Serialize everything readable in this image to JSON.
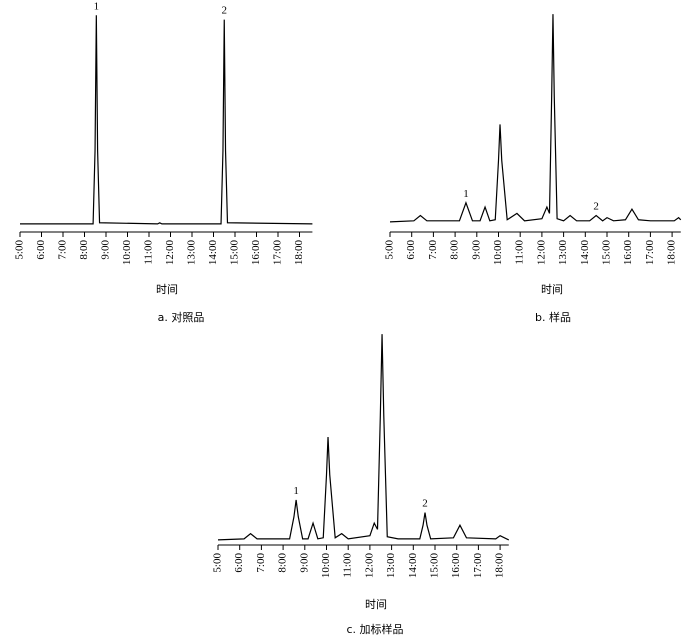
{
  "chart_data": [
    {
      "type": "line",
      "caption": "a. 对照品",
      "xlabel": "时间",
      "color": "#000000",
      "xlim": [
        5,
        18.6
      ],
      "ylim": [
        0,
        100
      ],
      "xticks": [
        {
          "value": 5,
          "label": "5:00"
        },
        {
          "value": 6,
          "label": "6:00"
        },
        {
          "value": 7,
          "label": "7:00"
        },
        {
          "value": 8,
          "label": "8:00"
        },
        {
          "value": 9,
          "label": "9:00"
        },
        {
          "value": 10,
          "label": "10:00"
        },
        {
          "value": 11,
          "label": "11:00"
        },
        {
          "value": 12,
          "label": "12:00"
        },
        {
          "value": 13,
          "label": "13:00"
        },
        {
          "value": 14,
          "label": "14:00"
        },
        {
          "value": 15,
          "label": "15:00"
        },
        {
          "value": 16,
          "label": "16:00"
        },
        {
          "value": 17,
          "label": "17:00"
        },
        {
          "value": 18,
          "label": "18:00"
        }
      ],
      "x": [
        5,
        8.4,
        8.49,
        8.55,
        8.61,
        8.7,
        11.4,
        11.5,
        11.6,
        14.35,
        14.44,
        14.5,
        14.56,
        14.65,
        18.6
      ],
      "values": [
        1,
        1,
        35,
        98,
        35,
        1.5,
        1,
        1.5,
        1,
        1,
        35,
        96,
        35,
        1.5,
        1
      ],
      "annotations": [
        {
          "text": "1",
          "x": 8.55
        },
        {
          "text": "2",
          "x": 14.5
        }
      ]
    },
    {
      "type": "line",
      "caption": "b. 样品",
      "xlabel": "时间",
      "color": "#000000",
      "xlim": [
        5,
        18.4
      ],
      "ylim": [
        0,
        100
      ],
      "xticks": [
        {
          "value": 5,
          "label": "5:00"
        },
        {
          "value": 6,
          "label": "6:00"
        },
        {
          "value": 7,
          "label": "7:00"
        },
        {
          "value": 8,
          "label": "8:00"
        },
        {
          "value": 9,
          "label": "9:00"
        },
        {
          "value": 10,
          "label": "10:00"
        },
        {
          "value": 11,
          "label": "11:00"
        },
        {
          "value": 12,
          "label": "12:00"
        },
        {
          "value": 13,
          "label": "13:00"
        },
        {
          "value": 14,
          "label": "14:00"
        },
        {
          "value": 15,
          "label": "15:00"
        },
        {
          "value": 16,
          "label": "16:00"
        },
        {
          "value": 17,
          "label": "17:00"
        },
        {
          "value": 18,
          "label": "18:00"
        }
      ],
      "x": [
        5,
        6.1,
        6.4,
        6.7,
        8.2,
        8.5,
        8.8,
        9.15,
        9.38,
        9.6,
        9.85,
        10.0,
        10.07,
        10.15,
        10.4,
        10.85,
        11.2,
        12.0,
        12.23,
        12.35,
        12.45,
        12.51,
        12.57,
        12.7,
        13.0,
        13.3,
        13.6,
        14.2,
        14.5,
        14.8,
        15.0,
        15.3,
        15.85,
        16.15,
        16.45,
        17.0,
        18.1,
        18.3,
        18.4
      ],
      "values": [
        1,
        1.5,
        4,
        1.5,
        1.5,
        10,
        1.5,
        1.5,
        8,
        1.5,
        2,
        30,
        47,
        30,
        2,
        5,
        1.5,
        2.5,
        8,
        5,
        60,
        99,
        60,
        2.5,
        1.5,
        4,
        1.5,
        1.5,
        4,
        1.5,
        3,
        1.5,
        2,
        7,
        2,
        1.5,
        1.5,
        3,
        2
      ],
      "annotations": [
        {
          "text": "1",
          "x": 8.5
        },
        {
          "text": "2",
          "x": 14.5
        }
      ]
    },
    {
      "type": "line",
      "caption": "c. 加标样品",
      "xlabel": "时间",
      "color": "#000000",
      "xlim": [
        5,
        18.4
      ],
      "ylim": [
        0,
        100
      ],
      "xticks": [
        {
          "value": 5,
          "label": "5:00"
        },
        {
          "value": 6,
          "label": "6:00"
        },
        {
          "value": 7,
          "label": "7:00"
        },
        {
          "value": 8,
          "label": "8:00"
        },
        {
          "value": 9,
          "label": "9:00"
        },
        {
          "value": 10,
          "label": "10:00"
        },
        {
          "value": 11,
          "label": "11:00"
        },
        {
          "value": 12,
          "label": "12:00"
        },
        {
          "value": 13,
          "label": "13:00"
        },
        {
          "value": 14,
          "label": "14:00"
        },
        {
          "value": 15,
          "label": "15:00"
        },
        {
          "value": 16,
          "label": "16:00"
        },
        {
          "value": 17,
          "label": "17:00"
        },
        {
          "value": 18,
          "label": "18:00"
        }
      ],
      "x": [
        5,
        6.2,
        6.5,
        6.8,
        8.3,
        8.5,
        8.6,
        8.7,
        8.9,
        9.15,
        9.38,
        9.6,
        9.85,
        10.0,
        10.07,
        10.15,
        10.4,
        10.7,
        11.0,
        12.0,
        12.2,
        12.35,
        12.48,
        12.56,
        12.64,
        12.8,
        13.3,
        14.3,
        14.45,
        14.54,
        14.63,
        14.8,
        15.85,
        16.15,
        16.45,
        17.8,
        18.0,
        18.4
      ],
      "values": [
        1,
        1.5,
        4,
        1.5,
        1.5,
        12,
        20,
        12,
        1.5,
        1.5,
        9,
        1.5,
        2,
        32,
        50,
        32,
        2,
        4,
        1.5,
        3,
        9,
        6,
        60,
        99,
        60,
        2.5,
        1.5,
        1.5,
        8,
        14,
        8,
        1.5,
        2,
        8,
        2,
        1.5,
        3,
        1
      ],
      "annotations": [
        {
          "text": "1",
          "x": 8.6
        },
        {
          "text": "2",
          "x": 14.54
        }
      ]
    }
  ]
}
